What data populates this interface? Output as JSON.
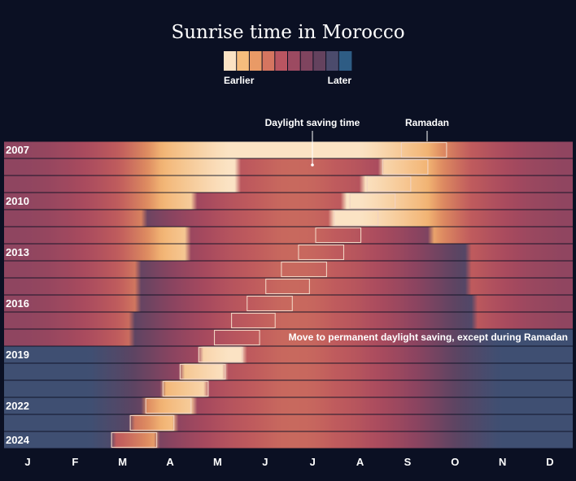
{
  "chart_data": {
    "type": "heatmap",
    "title": "Sunrise time in Morocco",
    "color_legend": {
      "low_label": "Earlier",
      "high_label": "Later",
      "colors": [
        "#fbe3c4",
        "#f5bd7d",
        "#e99a66",
        "#d57560",
        "#b95561",
        "#9c4a61",
        "#7f445f",
        "#64425e",
        "#4b4b6c",
        "#2e5c84"
      ]
    },
    "x_tick_labels": [
      "J",
      "F",
      "M",
      "A",
      "M",
      "J",
      "J",
      "A",
      "S",
      "O",
      "N",
      "D"
    ],
    "y_tick_labels": [
      {
        "year": 2007,
        "label": "2007"
      },
      {
        "year": 2010,
        "label": "2010"
      },
      {
        "year": 2013,
        "label": "2013"
      },
      {
        "year": 2016,
        "label": "2016"
      },
      {
        "year": 2019,
        "label": "2019"
      },
      {
        "year": 2022,
        "label": "2022"
      },
      {
        "year": 2024,
        "label": "2024"
      }
    ],
    "years": [
      2007,
      2008,
      2009,
      2010,
      2011,
      2012,
      2013,
      2014,
      2015,
      2016,
      2017,
      2018,
      2019,
      2020,
      2021,
      2022,
      2023,
      2024
    ],
    "ramadan_periods": [
      {
        "year": 2007,
        "start": "09-13",
        "end": "10-12"
      },
      {
        "year": 2008,
        "start": "09-01",
        "end": "09-30"
      },
      {
        "year": 2009,
        "start": "08-22",
        "end": "09-19"
      },
      {
        "year": 2010,
        "start": "08-11",
        "end": "09-09"
      },
      {
        "year": 2011,
        "start": "08-01",
        "end": "08-29"
      },
      {
        "year": 2012,
        "start": "07-20",
        "end": "08-18"
      },
      {
        "year": 2013,
        "start": "07-09",
        "end": "08-07"
      },
      {
        "year": 2014,
        "start": "06-28",
        "end": "07-27"
      },
      {
        "year": 2015,
        "start": "06-18",
        "end": "07-16"
      },
      {
        "year": 2016,
        "start": "06-06",
        "end": "07-05"
      },
      {
        "year": 2017,
        "start": "05-27",
        "end": "06-24"
      },
      {
        "year": 2018,
        "start": "05-16",
        "end": "06-14"
      },
      {
        "year": 2019,
        "start": "05-06",
        "end": "06-03"
      },
      {
        "year": 2020,
        "start": "04-24",
        "end": "05-23"
      },
      {
        "year": 2021,
        "start": "04-13",
        "end": "05-12"
      },
      {
        "year": 2022,
        "start": "04-02",
        "end": "05-01"
      },
      {
        "year": 2023,
        "start": "03-23",
        "end": "04-20"
      },
      {
        "year": 2024,
        "start": "03-11",
        "end": "04-09"
      }
    ],
    "dst_periods": [
      {
        "year": 2007
      },
      {
        "year": 2008,
        "start": "06-01",
        "end": "08-31"
      },
      {
        "year": 2009,
        "start": "06-01",
        "end": "08-20"
      },
      {
        "year": 2010,
        "start": "05-02",
        "end": "08-07"
      },
      {
        "year": 2011,
        "start": "04-03",
        "end": "07-31"
      },
      {
        "year": 2012,
        "start": "04-29",
        "end": "09-30"
      },
      {
        "year": 2013,
        "start": "04-28",
        "end": "10-27"
      },
      {
        "year": 2014,
        "start": "03-30",
        "end": "10-26"
      },
      {
        "year": 2015,
        "start": "03-29",
        "end": "10-25"
      },
      {
        "year": 2016,
        "start": "03-27",
        "end": "10-30"
      },
      {
        "year": 2017,
        "start": "03-26",
        "end": "10-29"
      },
      {
        "year": 2018,
        "start": "03-25",
        "end": "12-31"
      },
      {
        "year": 2019,
        "start": "01-01",
        "end": "12-31"
      },
      {
        "year": 2020,
        "start": "01-01",
        "end": "12-31"
      },
      {
        "year": 2021,
        "start": "01-01",
        "end": "12-31"
      },
      {
        "year": 2022,
        "start": "01-01",
        "end": "12-31"
      },
      {
        "year": 2023,
        "start": "01-01",
        "end": "12-31"
      },
      {
        "year": 2024,
        "start": "01-01",
        "end": "12-31"
      }
    ],
    "annotations": {
      "dst": "Daylight saving time",
      "ramadan": "Ramadan",
      "permanent": "Move to permanent daylight saving, except during Ramadan"
    }
  }
}
